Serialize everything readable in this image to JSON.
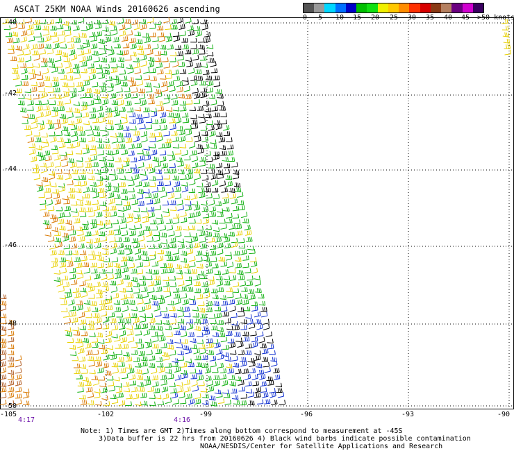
{
  "title": "ASCAT 25KM NOAA Winds 20160626 ascending",
  "legend": {
    "colors": [
      "#555555",
      "#9a9a9a",
      "#00d8ff",
      "#0070ff",
      "#0000c8",
      "#00c000",
      "#10e010",
      "#f0f000",
      "#ffc800",
      "#ff8c00",
      "#ff3000",
      "#d80000",
      "#8a3a14",
      "#b58060",
      "#6a0080",
      "#d000d0",
      "#3a0060"
    ],
    "ticks": [
      "0",
      "5",
      "10",
      "15",
      "20",
      "25",
      "30",
      "35",
      "40",
      "45",
      ">50 knots"
    ]
  },
  "axes": {
    "lon_labels": [
      "-105",
      "-102",
      "-99",
      "-96",
      "-93",
      "-90"
    ],
    "lat_labels": [
      "-40",
      "-42",
      "-44",
      "-46",
      "-48",
      "-50"
    ]
  },
  "times": [
    "4:17",
    "4:16"
  ],
  "notes": {
    "line1": "Note: 1) Times are GMT 2)Times along bottom correspond to measurement at -45S",
    "line2": "3)Data buffer is 22 hrs from 20160626 4) Black wind barbs indicate possible contamination",
    "line3": "NOAA/NESDIS/Center for Satellite Applications and Research"
  },
  "barb_colors": {
    "yellow": "#e8d000",
    "orange": "#d87800",
    "brown": "#b05a20",
    "green": "#10b010",
    "blue": "#1030d0",
    "black": "#000000"
  }
}
